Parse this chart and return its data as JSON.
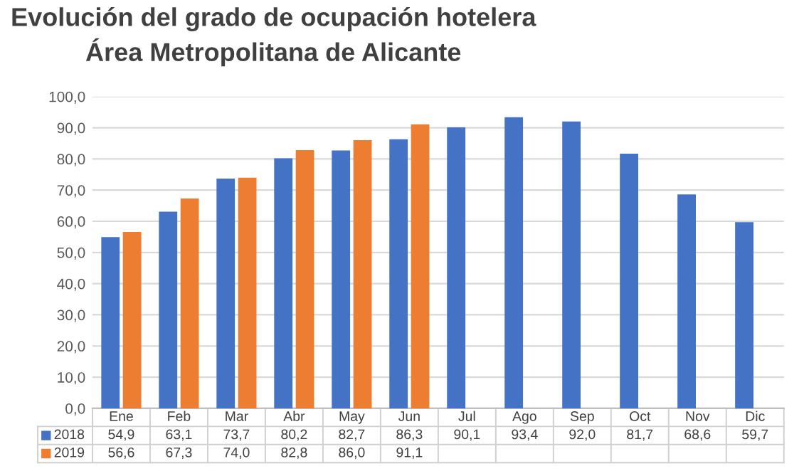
{
  "chart_data": {
    "type": "bar",
    "title": "Evolución del grado de ocupación hotelera\nÁrea Metropolitana de Alicante",
    "categories": [
      "Ene",
      "Feb",
      "Mar",
      "Abr",
      "May",
      "Jun",
      "Jul",
      "Ago",
      "Sep",
      "Oct",
      "Nov",
      "Dic"
    ],
    "series": [
      {
        "name": "2018",
        "color": "#4472c4",
        "values": [
          54.9,
          63.1,
          73.7,
          80.2,
          82.7,
          86.3,
          90.1,
          93.4,
          92.0,
          81.7,
          68.6,
          59.7
        ],
        "value_labels": [
          "54,9",
          "63,1",
          "73,7",
          "80,2",
          "82,7",
          "86,3",
          "90,1",
          "93,4",
          "92,0",
          "81,7",
          "68,6",
          "59,7"
        ]
      },
      {
        "name": "2019",
        "color": "#ed7d31",
        "values": [
          56.6,
          67.3,
          74.0,
          82.8,
          86.0,
          91.1,
          null,
          null,
          null,
          null,
          null,
          null
        ],
        "value_labels": [
          "56,6",
          "67,3",
          "74,0",
          "82,8",
          "86,0",
          "91,1",
          null,
          null,
          null,
          null,
          null,
          null
        ]
      }
    ],
    "ylim": [
      0,
      100
    ],
    "yticks": [
      {
        "value": 0,
        "label": "0,0"
      },
      {
        "value": 10,
        "label": "10,0"
      },
      {
        "value": 20,
        "label": "20,0"
      },
      {
        "value": 30,
        "label": "30,0"
      },
      {
        "value": 40,
        "label": "40,0"
      },
      {
        "value": 50,
        "label": "50,0"
      },
      {
        "value": 60,
        "label": "60,0"
      },
      {
        "value": 70,
        "label": "70,0"
      },
      {
        "value": 80,
        "label": "80,0"
      },
      {
        "value": 90,
        "label": "90,0"
      },
      {
        "value": 100,
        "label": "100,0"
      }
    ],
    "grid": "y",
    "legend": "bottom"
  }
}
